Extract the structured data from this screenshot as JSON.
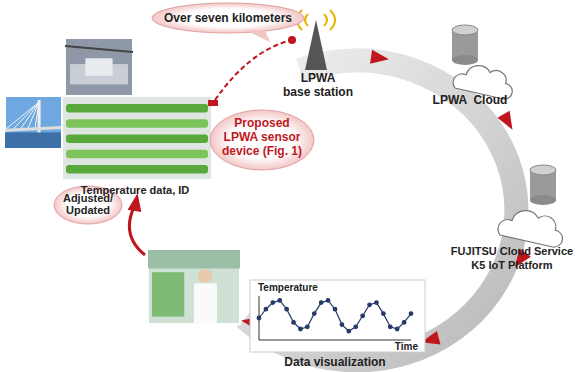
{
  "callouts": {
    "distance": "Over seven kilometers",
    "device": [
      "Proposed",
      "LPWA sensor",
      "device (Fig. 1)"
    ],
    "update": [
      "Adjusted/",
      "Updated"
    ]
  },
  "nodes": [
    {
      "label": [
        "LPWA",
        "base station"
      ]
    },
    {
      "label": [
        "LPWA  Cloud"
      ]
    },
    {
      "label": [
        "FUJITSU Cloud Service",
        "K5 IoT Platform"
      ]
    },
    {
      "label": [
        "Data visualization"
      ]
    }
  ],
  "sensor_label": "Temperature data, ID",
  "chart_data": {
    "type": "line",
    "y_label": "Temperature",
    "x_label": "Time",
    "values": [
      5,
      7,
      8.5,
      9,
      7,
      4,
      2.5,
      3,
      6,
      8.5,
      9,
      7,
      3.5,
      2,
      3,
      5.5,
      8,
      8.5,
      6,
      3,
      2.5,
      4,
      6
    ],
    "ylim": [
      0,
      10
    ],
    "tick_labels": false,
    "marker": "circle",
    "color": "#26396a"
  }
}
